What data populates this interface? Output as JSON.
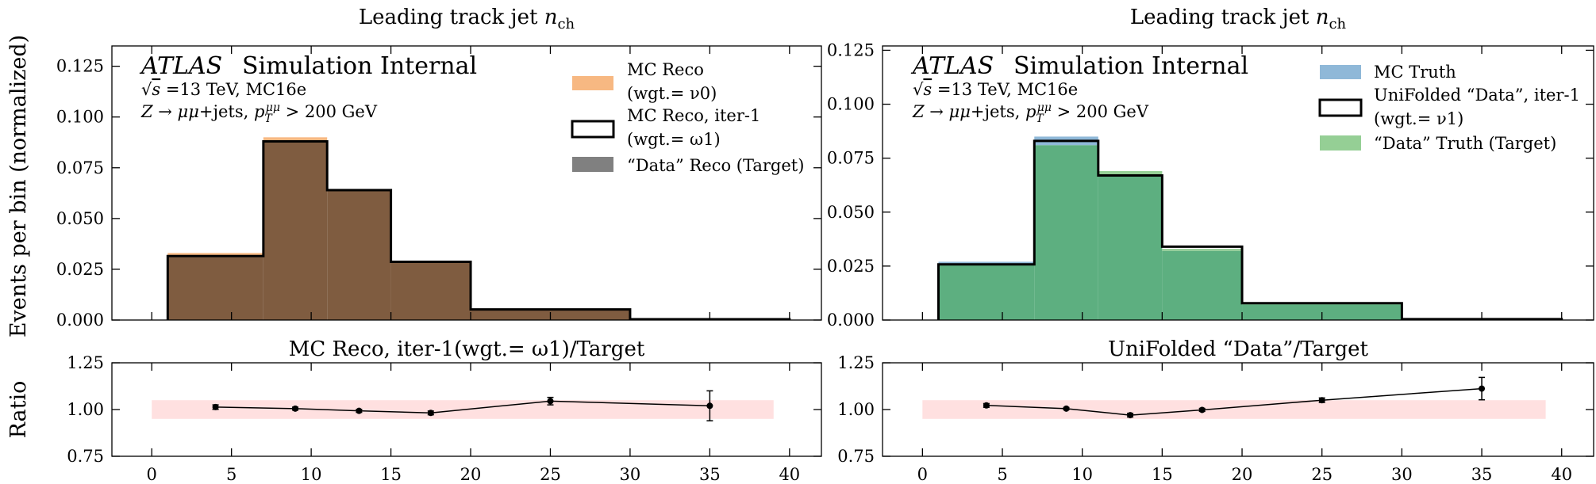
{
  "y_axis_label_top": "Events per bin (normalized)",
  "y_axis_label_bottom": "Ratio",
  "atlas_label": "ATLAS",
  "atlas_sublabel": "Simulation Internal",
  "energy_label": "√s =13 TeV, MC16e",
  "selection_label": "Z → μμ+jets, pTμμ > 200 GeV",
  "colors": {
    "mc_reco": "#f7b882",
    "data_reco": "#808080",
    "overlap_reco": "#7f5c40",
    "mc_truth": "#8fb8d8",
    "data_truth": "#95cf95",
    "overlap_truth": "#5daf80",
    "band": "#ffe0e0"
  },
  "chart_data": [
    {
      "type": "bar",
      "title": "Leading track jet nch",
      "bin_edges": [
        1,
        7,
        11,
        15,
        20,
        30,
        40
      ],
      "xlim": [
        -2.5,
        42
      ],
      "ylim": [
        0,
        0.135
      ],
      "yticks": [
        "0.000",
        "0.025",
        "0.050",
        "0.075",
        "0.100",
        "0.125"
      ],
      "ytick_values": [
        0,
        0.025,
        0.05,
        0.075,
        0.1,
        0.125
      ],
      "series": [
        {
          "name": "MC Reco (wgt.= ν0)",
          "legend_line1": "MC Reco",
          "legend_line2": "(wgt.= ν0)",
          "values": [
            0.033,
            0.09,
            0.064,
            0.0285,
            0.005,
            0.0004
          ]
        },
        {
          "name": "“Data” Reco (Target)",
          "legend_line1": "“Data” Reco (Target)",
          "values": [
            0.031,
            0.0875,
            0.064,
            0.029,
            0.0048,
            0.0004
          ]
        },
        {
          "name": "MC Reco, iter-1 (wgt.= ω1)",
          "legend_line1": "MC Reco, iter-1",
          "legend_line2": "(wgt.= ω1)",
          "values": [
            0.0315,
            0.088,
            0.064,
            0.0287,
            0.0052,
            0.0004
          ]
        }
      ]
    },
    {
      "type": "line",
      "title": "MC Reco, iter-1(wgt.= ω1)/Target",
      "ylim": [
        0.75,
        1.25
      ],
      "yticks": [
        "0.75",
        "1.00",
        "1.25"
      ],
      "ytick_values": [
        0.75,
        1.0,
        1.25
      ],
      "xticks": [
        "0",
        "5",
        "10",
        "15",
        "20",
        "25",
        "30",
        "35",
        "40"
      ],
      "xtick_values": [
        0,
        5,
        10,
        15,
        20,
        25,
        30,
        35,
        40
      ],
      "band": [
        0.95,
        1.05
      ],
      "band_x": [
        0,
        39
      ],
      "x": [
        4,
        9,
        13,
        17.5,
        25,
        35
      ],
      "y": [
        1.013,
        1.005,
        0.993,
        0.982,
        1.045,
        1.02
      ],
      "yerr": [
        0.012,
        0.008,
        0.008,
        0.01,
        0.02,
        0.08
      ]
    },
    {
      "type": "bar",
      "title": "Leading track jet nch",
      "bin_edges": [
        1,
        7,
        11,
        15,
        20,
        30,
        40
      ],
      "xlim": [
        -2.5,
        42
      ],
      "ylim": [
        0,
        0.127
      ],
      "yticks": [
        "0.000",
        "0.025",
        "0.050",
        "0.075",
        "0.100",
        "0.125"
      ],
      "ytick_values": [
        0,
        0.025,
        0.05,
        0.075,
        0.1,
        0.125
      ],
      "series": [
        {
          "name": "MC Truth",
          "legend_line1": "MC Truth",
          "values": [
            0.027,
            0.085,
            0.067,
            0.032,
            0.0072,
            0.0004
          ]
        },
        {
          "name": "“Data” Truth (Target)",
          "legend_line1": "“Data” Truth (Target)",
          "values": [
            0.0255,
            0.081,
            0.069,
            0.033,
            0.0075,
            0.0004
          ]
        },
        {
          "name": "UniFolded “Data”, iter-1 (wgt.= ν1)",
          "legend_line1": "UniFolded “Data”, iter-1",
          "legend_line2": "(wgt.= ν1)",
          "values": [
            0.0258,
            0.083,
            0.067,
            0.034,
            0.0078,
            0.0004
          ]
        }
      ]
    },
    {
      "type": "line",
      "title": "UniFolded “Data”/Target",
      "ylim": [
        0.75,
        1.25
      ],
      "yticks": [
        "0.75",
        "1.00",
        "1.25"
      ],
      "ytick_values": [
        0.75,
        1.0,
        1.25
      ],
      "xticks": [
        "0",
        "5",
        "10",
        "15",
        "20",
        "25",
        "30",
        "35",
        "40"
      ],
      "xtick_values": [
        0,
        5,
        10,
        15,
        20,
        25,
        30,
        35,
        40
      ],
      "band": [
        0.95,
        1.05
      ],
      "band_x": [
        0,
        39
      ],
      "x": [
        4,
        9,
        13,
        17.5,
        25,
        35
      ],
      "y": [
        1.022,
        1.005,
        0.97,
        0.998,
        1.05,
        1.112
      ],
      "yerr": [
        0.01,
        0.006,
        0.01,
        0.008,
        0.012,
        0.06
      ]
    }
  ]
}
